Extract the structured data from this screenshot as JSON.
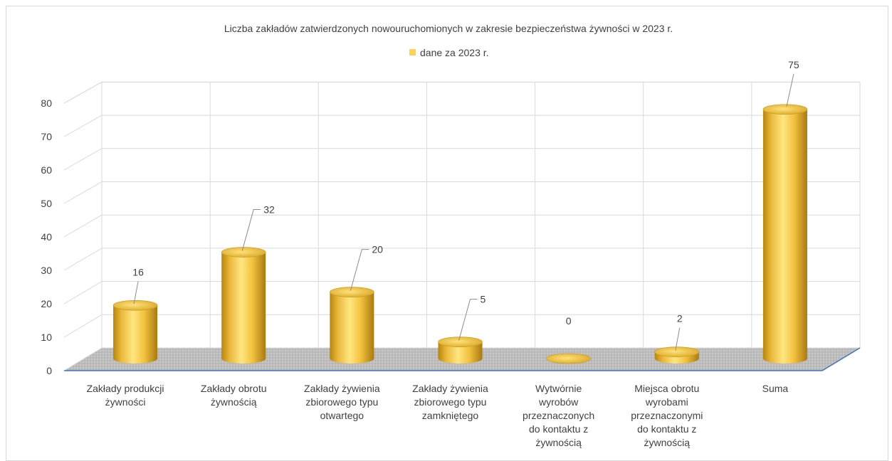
{
  "chart_data": {
    "type": "bar",
    "title": "Liczba zakładów zatwierdzonych nowouruchomionych w zakresie bezpieczeństwa żywności w 2023 r.",
    "legend_position": "top",
    "grid": true,
    "ylim": [
      0,
      80
    ],
    "yticks": [
      "0",
      "10",
      "20",
      "30",
      "40",
      "50",
      "60",
      "70",
      "80"
    ],
    "categories": [
      [
        "Zakłady produkcji",
        "żywności"
      ],
      [
        "Zakłady obrotu",
        "żywnością"
      ],
      [
        "Zakłady żywienia",
        "zbiorowego typu",
        "otwartego"
      ],
      [
        "Zakłady żywienia",
        "zbiorowego typu",
        "zamkniętego"
      ],
      [
        "Wytwórnie",
        "wyrobów",
        "przeznaczonych",
        "do kontaktu z",
        "żywnością"
      ],
      [
        "Miejsca obrotu",
        "wyrobami",
        "przeznaczonymi",
        "do kontaktu z",
        "żywnością"
      ],
      [
        "Suma"
      ]
    ],
    "series": [
      {
        "name": "dane za 2023 r.",
        "color": "#FFD24F",
        "values": [
          16,
          32,
          20,
          5,
          0,
          2,
          75
        ],
        "labels": [
          "16",
          "32",
          "20",
          "5",
          "0",
          "2",
          "75"
        ]
      }
    ]
  }
}
